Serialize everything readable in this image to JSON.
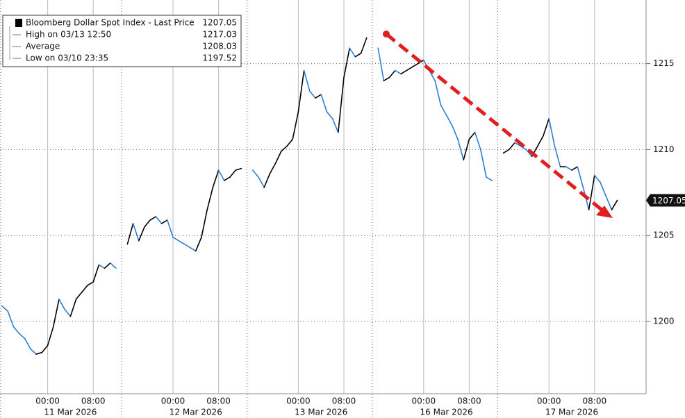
{
  "chart_data": {
    "type": "line",
    "legend_stats": [
      {
        "label": "Bloomberg Dollar Spot Index - Last Price",
        "value": 1207.05
      },
      {
        "label": "High on 03/13 12:50",
        "value": 1217.03
      },
      {
        "label": "Average",
        "value": 1208.03
      },
      {
        "label": "Low on 03/10 23:35",
        "value": 1197.52
      }
    ],
    "categories": [
      null,
      null,
      null,
      null,
      null,
      null,
      null,
      null,
      "00:00",
      null,
      null,
      null,
      null,
      null,
      null,
      null,
      "08:00",
      null,
      null,
      null,
      null,
      null,
      null,
      null,
      null,
      null,
      null,
      null,
      null,
      null,
      "00:00",
      null,
      null,
      null,
      null,
      null,
      null,
      null,
      "08:00",
      null,
      null,
      null,
      null,
      null,
      null,
      null,
      null,
      null,
      null,
      null,
      null,
      null,
      "00:00",
      null,
      null,
      null,
      null,
      null,
      null,
      null,
      "08:00",
      null,
      null,
      null,
      null,
      null,
      null,
      null,
      null,
      null,
      null,
      null,
      null,
      null,
      "00:00",
      null,
      null,
      null,
      null,
      null,
      null,
      null,
      "08:00",
      null,
      null,
      null,
      null,
      null,
      null,
      null,
      null,
      null,
      null,
      null,
      null,
      null,
      "00:00",
      null,
      null,
      null,
      null,
      null,
      null,
      null,
      "08:00",
      null,
      null,
      null,
      null
    ],
    "category_dates": [
      null,
      null,
      null,
      null,
      null,
      null,
      null,
      null,
      null,
      null,
      null,
      null,
      "11 Mar 2026",
      null,
      null,
      null,
      null,
      null,
      null,
      null,
      null,
      null,
      null,
      null,
      null,
      null,
      null,
      null,
      null,
      null,
      null,
      null,
      null,
      null,
      "12 Mar 2026",
      null,
      null,
      null,
      null,
      null,
      null,
      null,
      null,
      null,
      null,
      null,
      null,
      null,
      null,
      null,
      null,
      null,
      null,
      null,
      null,
      null,
      "13 Mar 2026",
      null,
      null,
      null,
      null,
      null,
      null,
      null,
      null,
      null,
      null,
      null,
      null,
      null,
      null,
      null,
      null,
      null,
      null,
      null,
      null,
      null,
      "16 Mar 2026",
      null,
      null,
      null,
      null,
      null,
      null,
      null,
      null,
      null,
      null,
      null,
      null,
      null,
      null,
      null,
      null,
      null,
      null,
      null,
      null,
      null,
      "17 Mar 2026",
      null,
      null,
      null,
      null,
      null,
      null,
      null,
      null
    ],
    "series": [
      {
        "name": "Bloomberg Dollar Spot Index - Last Price",
        "color": "#000000",
        "down_color": "#2a7fd4",
        "values": [
          1200.9,
          1200.6,
          1199.7,
          1199.3,
          1199.0,
          1198.4,
          1198.1,
          1198.2,
          1198.6,
          1199.7,
          1201.3,
          1200.7,
          1200.3,
          1201.3,
          1201.7,
          1202.1,
          1202.3,
          1203.3,
          1203.1,
          1203.4,
          1203.1,
          null,
          1204.5,
          1205.7,
          1204.7,
          1205.5,
          1205.9,
          1206.1,
          1205.7,
          1205.9,
          1204.9,
          1204.7,
          1204.5,
          1204.3,
          1204.1,
          1204.9,
          1206.5,
          1207.8,
          1208.8,
          1208.2,
          1208.4,
          1208.8,
          1208.9,
          null,
          1208.8,
          1208.4,
          1207.8,
          1208.6,
          1209.2,
          1209.9,
          1210.2,
          1210.6,
          1212.2,
          1214.6,
          1213.4,
          1213.0,
          1213.2,
          1212.2,
          1211.8,
          1211.0,
          1214.2,
          1215.9,
          1215.4,
          1215.6,
          1216.5,
          null,
          1215.9,
          1214.0,
          1214.2,
          1214.6,
          1214.4,
          1214.6,
          1214.8,
          1215.0,
          1215.2,
          1214.6,
          1214.0,
          1212.6,
          1212.0,
          1211.4,
          1210.6,
          1209.4,
          1210.6,
          1211.0,
          1210.0,
          1208.4,
          1208.2,
          null,
          1209.8,
          1210.0,
          1210.4,
          1210.2,
          1210.0,
          1209.6,
          1210.2,
          1210.8,
          1211.8,
          1210.2,
          1209.0,
          1209.0,
          1208.8,
          1209.0,
          1207.8,
          1206.5,
          1208.5,
          1208.1,
          1207.3,
          1206.5,
          1207.05
        ]
      }
    ],
    "ylim": [
      1195.8,
      1218.7
    ],
    "yticks": [
      1200,
      1205,
      1210,
      1215
    ],
    "grid": true
  }
}
